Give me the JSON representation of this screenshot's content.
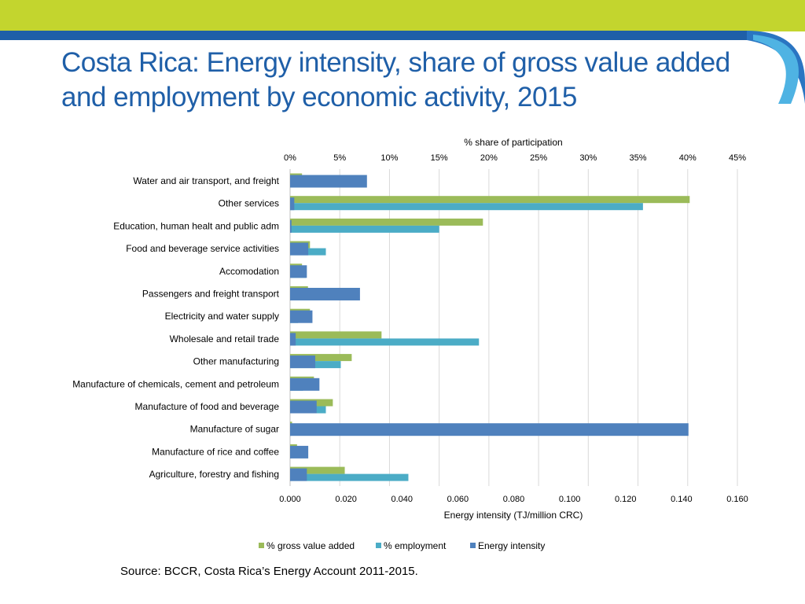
{
  "slide": {
    "title_line1": "Costa Rica: Energy intensity, share of gross value added",
    "title_line2": "and employment by economic activity, 2015",
    "source": "Source: BCCR, Costa Rica’s Energy Account 2011-2015.",
    "colors": {
      "title": "#1f5fa8",
      "banner_green": "#c3d52e",
      "banner_blue": "#1f5fa8",
      "banner_lightblue": "#3aa0d8"
    }
  },
  "chart_data": {
    "type": "bar",
    "orientation": "horizontal",
    "title": "",
    "top_axis_label": "% share of participation",
    "top_axis_ticks": [
      "0%",
      "5%",
      "10%",
      "15%",
      "20%",
      "25%",
      "30%",
      "35%",
      "40%",
      "45%"
    ],
    "top_axis_range": [
      0,
      45
    ],
    "xlabel": "Energy intensity (TJ/million CRC)",
    "bottom_axis_ticks": [
      "0.000",
      "0.020",
      "0.040",
      "0.060",
      "0.080",
      "0.100",
      "0.120",
      "0.140",
      "0.160"
    ],
    "bottom_axis_range": [
      0,
      0.16
    ],
    "grid": true,
    "legend_position": "bottom",
    "categories": [
      "Water and air transport, and freight",
      "Other services",
      "Education, human healt and public adm",
      "Food and beverage service activities",
      "Accomodation",
      "Passengers and freight transport",
      "Electricity and water supply",
      "Wholesale and retail trade",
      "Other manufacturing",
      "Manufacture of chemicals, cement and petroleum",
      "Manufacture of food and beverage",
      "Manufacture of sugar",
      "Manufacture of rice and coffee",
      "Agriculture, forestry and fishing"
    ],
    "series": [
      {
        "name": "% gross value added",
        "axis": "top",
        "color": "#9bbb59",
        "values": [
          1.2,
          40.2,
          19.4,
          2.0,
          1.2,
          1.8,
          2.0,
          9.2,
          6.2,
          2.4,
          4.3,
          0.2,
          0.7,
          5.5
        ]
      },
      {
        "name": "% employment",
        "axis": "top",
        "color": "#4bacc6",
        "values": [
          1.3,
          35.5,
          15.0,
          3.6,
          1.6,
          2.2,
          0.8,
          19.0,
          5.1,
          1.3,
          3.6,
          0.1,
          0.1,
          11.9
        ]
      },
      {
        "name": "Energy intensity",
        "axis": "bottom",
        "color": "#4f81bd",
        "values": [
          0.0275,
          0.0015,
          0.0005,
          0.0065,
          0.006,
          0.025,
          0.008,
          0.002,
          0.009,
          0.0105,
          0.0095,
          0.1425,
          0.0065,
          0.006
        ]
      }
    ]
  }
}
